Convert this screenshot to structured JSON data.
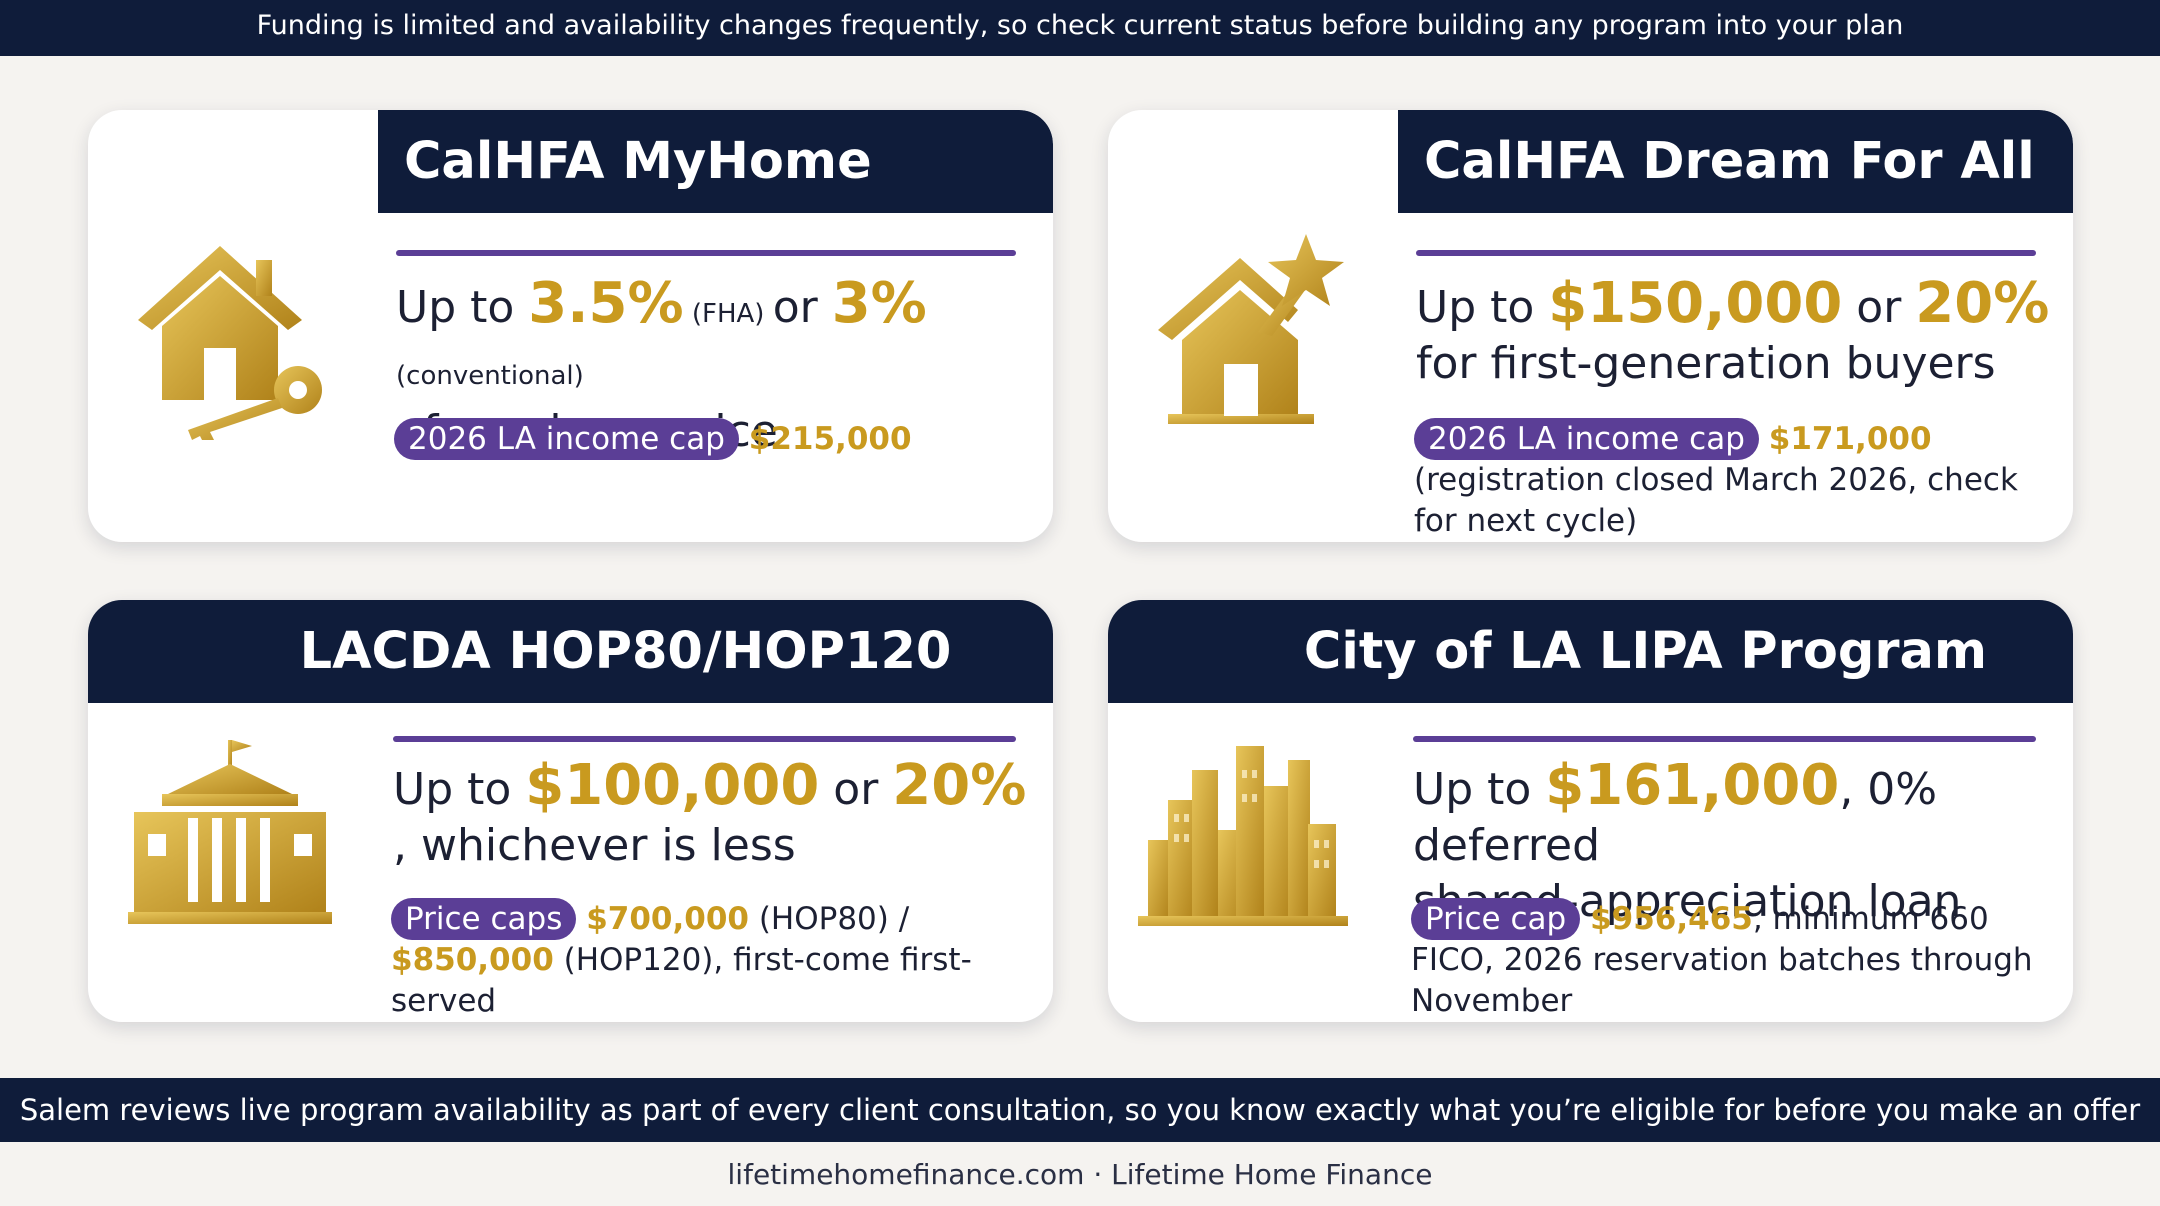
{
  "top_banner": "Funding is limited and availability changes frequently, so check current status before building any program into your plan",
  "cards": [
    {
      "title": "CalHFA MyHome",
      "icon": "house-key-icon",
      "headline": {
        "prefix": "Up to ",
        "v1": "3.5%",
        "n1": " (FHA) ",
        "mid": "or ",
        "v2": "3%",
        "n2": " (conventional)",
        "line2": "of purchase price"
      },
      "pill": "2026 LA income cap",
      "amount": "$215,000",
      "note": ""
    },
    {
      "title": "CalHFA Dream For All",
      "icon": "house-star-icon",
      "headline": {
        "prefix": "Up to ",
        "v1": "$150,000",
        "mid": " or ",
        "v2": "20%",
        "line2": "for first-generation buyers"
      },
      "pill": "2026 LA income cap",
      "amount": "$171,000",
      "note": " (registration closed March 2026, check for next cycle)"
    },
    {
      "title": "LACDA HOP80/HOP120",
      "icon": "government-building-icon",
      "headline": {
        "prefix": "Up to ",
        "v1": "$100,000",
        "mid": " or ",
        "v2": "20%",
        "line2": ", whichever is less"
      },
      "pill": "Price caps",
      "amount": "$700,000",
      "note": " (HOP80) / ",
      "amount2": "$850,000",
      "note2": " (HOP120), first-come first-served"
    },
    {
      "title": "City of LA LIPA Program",
      "icon": "city-skyline-icon",
      "headline": {
        "prefix": "Up to ",
        "v1": "$161,000",
        "rest": ", 0% deferred",
        "line2": "shared-appreciation loan"
      },
      "pill": "Price cap",
      "amount": "$956,465",
      "note": ", minimum 660 FICO, 2026 reservation batches through November"
    }
  ],
  "bottom_banner": "Salem reviews live program availability as part of every client consultation, so you know exactly what you’re eligible for before you make an offer",
  "footer": "lifetimehomefinance.com · Lifetime Home Finance",
  "colors": {
    "navy": "#0f1c3a",
    "gold": "#c99a1f",
    "purple": "#5b3e96",
    "background": "#f5f3f0"
  }
}
